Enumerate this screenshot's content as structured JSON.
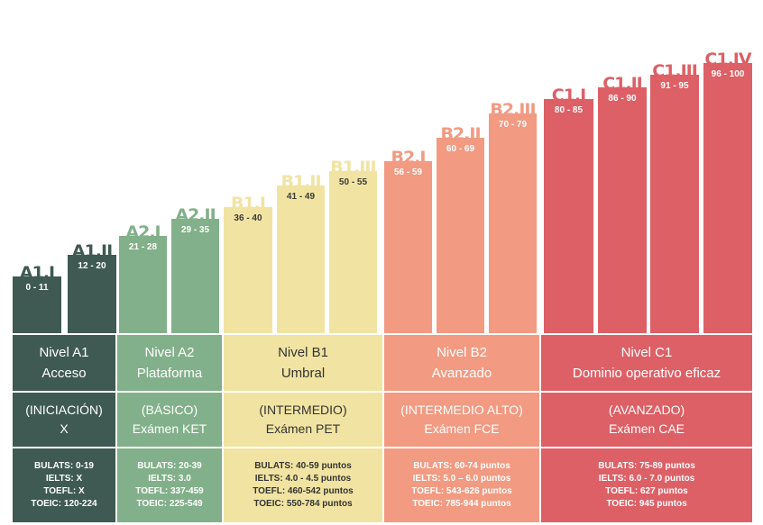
{
  "colors": {
    "A": "#3f5a53",
    "A_text": "#ffffff",
    "A_range": "#ffffff",
    "A2": "#82b08a",
    "A2_text": "#ffffff",
    "B1": "#f1e4a2",
    "B1_text": "#333333",
    "B2": "#f29a82",
    "B2_text": "#ffffff",
    "C1": "#dd6066",
    "C1_text": "#ffffff"
  },
  "chart_data": {
    "type": "bar",
    "categories": [
      "A1.I",
      "A1.II",
      "A2.I",
      "A2.II",
      "B1.I",
      "B1.II",
      "B1.III",
      "B2.I",
      "B2.II",
      "B2.III",
      "C1.I",
      "C1.II",
      "C1.III",
      "C1.IV"
    ],
    "ranges": [
      "0 - 11",
      "12 - 20",
      "21 - 28",
      "29 - 35",
      "36 - 40",
      "41 - 49",
      "50 - 55",
      "56 - 59",
      "60 - 69",
      "70 - 79",
      "80 - 85",
      "86 - 90",
      "91 - 95",
      "96 - 100"
    ],
    "values": [
      11,
      20,
      28,
      35,
      40,
      49,
      55,
      59,
      69,
      79,
      85,
      90,
      95,
      100
    ],
    "groups": [
      "A1",
      "A1",
      "A2",
      "A2",
      "B1",
      "B1",
      "B1",
      "B2",
      "B2",
      "B2",
      "C1",
      "C1",
      "C1",
      "C1"
    ],
    "ylim": [
      0,
      100
    ]
  },
  "levels": [
    {
      "name": "Nivel A1",
      "subtitle": "Acceso",
      "category": "(INICIACIÓN)",
      "exam": "X",
      "scores": [
        "BULATS: 0-19",
        "IELTS: X",
        "TOEFL: X",
        "TOEIC: 120-224"
      ]
    },
    {
      "name": "Nivel A2",
      "subtitle": "Plataforma",
      "category": "(BÁSICO)",
      "exam": "Exámen KET",
      "scores": [
        "BULATS: 20-39",
        "IELTS: 3.0",
        "TOEFL: 337-459",
        "TOEIC: 225-549"
      ]
    },
    {
      "name": "Nivel B1",
      "subtitle": "Umbral",
      "category": "(INTERMEDIO)",
      "exam": "Exámen PET",
      "scores": [
        "BULATS: 40-59 puntos",
        "IELTS: 4.0 - 4.5 puntos",
        "TOEFL: 460-542 puntos",
        "TOEIC: 550-784 puntos"
      ]
    },
    {
      "name": "Nivel B2",
      "subtitle": "Avanzado",
      "category": "(INTERMEDIO ALTO)",
      "exam": "Exámen FCE",
      "scores": [
        "BULATS: 60-74 puntos",
        "IELTS: 5.0 – 6.0 puntos",
        "TOEFL: 543-626 puntos",
        "TOEIC: 785-944 puntos"
      ]
    },
    {
      "name": "Nivel C1",
      "subtitle": "Dominio operativo eficaz",
      "category": "(AVANZADO)",
      "exam": "Exámen CAE",
      "scores": [
        "BULATS: 75-89 puntos",
        "IELTS: 6.0 - 7.0 puntos",
        "TOEFL: 627 puntos",
        "TOEIC: 945 puntos"
      ]
    }
  ]
}
